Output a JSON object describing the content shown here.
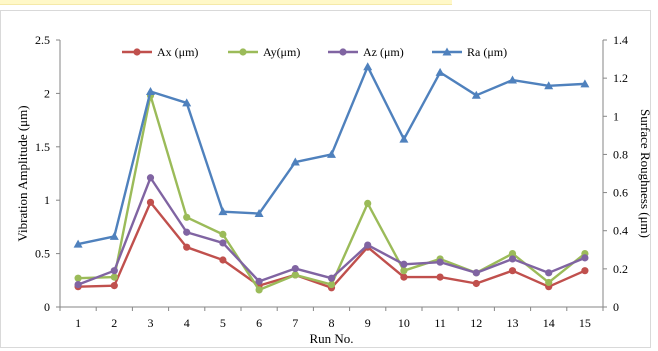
{
  "chart_data": {
    "type": "line",
    "xlabel": "Run No.",
    "ylabel_left": "Vibration Amplitude (μm)",
    "ylabel_right": "Surface Roughness (μm)",
    "categories": [
      "1",
      "2",
      "3",
      "4",
      "5",
      "6",
      "7",
      "8",
      "9",
      "10",
      "11",
      "12",
      "13",
      "14",
      "15"
    ],
    "y_left": {
      "range": [
        0,
        2.5
      ],
      "ticks": [
        "0",
        "0.5",
        "1",
        "1.5",
        "2",
        "2.5"
      ],
      "tick_values": [
        0,
        0.5,
        1,
        1.5,
        2,
        2.5
      ]
    },
    "y_right": {
      "range": [
        0,
        1.4
      ],
      "ticks": [
        "0",
        "0.2",
        "0.4",
        "0.6",
        "0.8",
        "1",
        "1.2",
        "1.4"
      ],
      "tick_values": [
        0,
        0.2,
        0.4,
        0.6,
        0.8,
        1,
        1.2,
        1.4
      ]
    },
    "grid": false,
    "legend_position": "top",
    "series": [
      {
        "name": "Ax (μm)",
        "axis": "left",
        "color": "#c0504d",
        "marker": "circle",
        "values": [
          0.19,
          0.2,
          0.98,
          0.56,
          0.44,
          0.2,
          0.3,
          0.18,
          0.56,
          0.28,
          0.28,
          0.22,
          0.34,
          0.19,
          0.34
        ]
      },
      {
        "name": "Ay(μm)",
        "axis": "left",
        "color": "#9bbb59",
        "marker": "circle",
        "values": [
          0.27,
          0.28,
          1.98,
          0.84,
          0.68,
          0.16,
          0.3,
          0.21,
          0.97,
          0.34,
          0.45,
          0.32,
          0.5,
          0.23,
          0.5
        ]
      },
      {
        "name": "Az (μm)",
        "axis": "left",
        "color": "#8064a2",
        "marker": "circle",
        "values": [
          0.21,
          0.34,
          1.21,
          0.7,
          0.6,
          0.24,
          0.36,
          0.27,
          0.58,
          0.4,
          0.42,
          0.32,
          0.45,
          0.32,
          0.46
        ]
      },
      {
        "name": "Ra (μm)",
        "axis": "right",
        "color": "#4f81bd",
        "marker": "triangle",
        "values": [
          0.33,
          0.37,
          1.13,
          1.07,
          0.5,
          0.49,
          0.76,
          0.8,
          1.26,
          0.88,
          1.23,
          1.11,
          1.19,
          1.16,
          1.17
        ]
      }
    ]
  }
}
